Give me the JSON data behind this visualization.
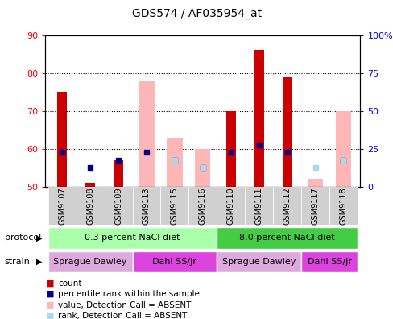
{
  "title": "GDS574 / AF035954_at",
  "samples": [
    "GSM9107",
    "GSM9108",
    "GSM9109",
    "GSM9113",
    "GSM9115",
    "GSM9116",
    "GSM9110",
    "GSM9111",
    "GSM9112",
    "GSM9117",
    "GSM9118"
  ],
  "red_bars": [
    75,
    51,
    57,
    null,
    null,
    null,
    70,
    86,
    79,
    null,
    null
  ],
  "pink_bars": [
    null,
    null,
    null,
    78,
    63,
    60,
    null,
    null,
    null,
    52,
    70
  ],
  "blue_squares_left": [
    59,
    55,
    57,
    59,
    57,
    55,
    59,
    61,
    59,
    null,
    57
  ],
  "light_blue_squares_left": [
    null,
    null,
    null,
    null,
    57,
    55,
    null,
    null,
    null,
    55,
    57
  ],
  "ylim_left": [
    50,
    90
  ],
  "ylim_right": [
    0,
    100
  ],
  "yticks_left": [
    50,
    60,
    70,
    80,
    90
  ],
  "yticks_right": [
    0,
    25,
    50,
    75,
    100
  ],
  "red_color": "#cc0000",
  "pink_color": "#ffb6b6",
  "blue_color": "#00008b",
  "light_blue_color": "#add8e6",
  "protocol_color_light": "#aaffaa",
  "protocol_color_dark": "#44cc44",
  "strain_color_light": "#ddaadd",
  "strain_color_dark": "#dd44dd",
  "legend_items": [
    {
      "color": "#cc0000",
      "label": "count"
    },
    {
      "color": "#00008b",
      "label": "percentile rank within the sample"
    },
    {
      "color": "#ffb6b6",
      "label": "value, Detection Call = ABSENT"
    },
    {
      "color": "#add8e6",
      "label": "rank, Detection Call = ABSENT"
    }
  ]
}
